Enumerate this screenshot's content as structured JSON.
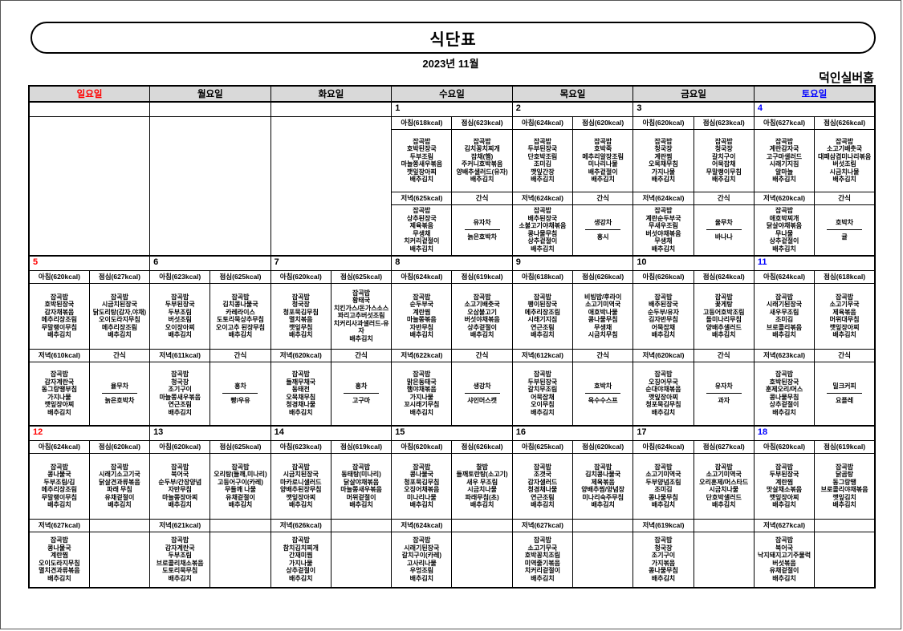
{
  "page": {
    "title": "식단표",
    "subtitle": "2023년 11월",
    "facility": "덕인실버홈"
  },
  "colors": {
    "sunday": "#ff0000",
    "saturday": "#0000ff",
    "weekday": "#000000",
    "header_bg": "#d9d9d9"
  },
  "day_headers": [
    "일요일",
    "월요일",
    "화요일",
    "수요일",
    "목요일",
    "금요일",
    "토요일"
  ],
  "weeks": [
    {
      "days": [
        {
          "date": ""
        },
        {
          "date": ""
        },
        {
          "date": ""
        },
        {
          "date": "1",
          "breakfast": {
            "header": "아침(618kcal)",
            "items": [
              "잡곡밥",
              "호박된장국",
              "두부조림",
              "마늘쫑새우볶음",
              "깻잎장아찌",
              "배추김치"
            ]
          },
          "lunch": {
            "header": "점심(623kcal)",
            "items": [
              "잡곡밥",
              "김치꽁치찌개",
              "잡채(햄)",
              "주커니호박볶음",
              "양배추샐러드(유자)",
              "배추김치"
            ]
          },
          "dinner": {
            "header": "저녁(625kcal)",
            "items": [
              "잡곡밥",
              "상추된장국",
              "제육볶음",
              "무생채",
              "치커리겉절이",
              "배추김치"
            ]
          },
          "snack": {
            "header": "간식",
            "items": [
              "유자차",
              "늙은호박차"
            ]
          }
        },
        {
          "date": "2",
          "breakfast": {
            "header": "아침(624kcal)",
            "items": [
              "잡곡밥",
              "두부된장국",
              "단호박조림",
              "조미김",
              "깻잎간장",
              "배추김치"
            ]
          },
          "lunch": {
            "header": "점심(620kcal)",
            "items": [
              "잡곡밥",
              "호박죽",
              "메추리알장조림",
              "미나리나물",
              "배추겉절이",
              "배추김치"
            ]
          },
          "dinner": {
            "header": "저녁(624kcal)",
            "items": [
              "잡곡밥",
              "배추된장국",
              "소불고기야채볶음",
              "콩나물무침",
              "상추겉절이",
              "배추김치"
            ]
          },
          "snack": {
            "header": "간식",
            "items": [
              "생강차",
              "홍시"
            ]
          }
        },
        {
          "date": "3",
          "breakfast": {
            "header": "아침(620kcal)",
            "items": [
              "잡곡밥",
              "청국장",
              "계란찜",
              "오목채무침",
              "가지나물",
              "배추김치"
            ]
          },
          "lunch": {
            "header": "점심(623kcal)",
            "items": [
              "잡곡밥",
              "청국장",
              "갈치구이",
              "어묵잡채",
              "무말랭이무침",
              "배추김치"
            ]
          },
          "dinner": {
            "header": "저녁(624kcal)",
            "items": [
              "잡곡밥",
              "계란순두부국",
              "무새우조림",
              "버섯야채볶음",
              "무생채",
              "배추김치"
            ]
          },
          "snack": {
            "header": "간식",
            "items": [
              "율무차",
              "바나나"
            ]
          }
        },
        {
          "date": "4",
          "breakfast": {
            "header": "아침(627kcal)",
            "items": [
              "잡곡밥",
              "계란감자국",
              "고구마샐러드",
              "시래기지짐",
              "알마늘",
              "배추김치"
            ]
          },
          "lunch": {
            "header": "점심(626kcal)",
            "items": [
              "잡곡밥",
              "소고기배춧국",
              "대패삼겹미나리볶음",
              "버섯조림",
              "시금치나물",
              "배추김치"
            ]
          },
          "dinner": {
            "header": "저녁(620kcal)",
            "items": [
              "잡곡밥",
              "애호박찌개",
              "닭살야채볶음",
              "무나물",
              "상추겉절이",
              "배추김치"
            ]
          },
          "snack": {
            "header": "간식",
            "items": [
              "호박차",
              "귤"
            ]
          }
        }
      ]
    },
    {
      "days": [
        {
          "date": "5",
          "breakfast": {
            "header": "아침(620kcal)",
            "items": [
              "잡곡밥",
              "호박된장국",
              "감자채볶음",
              "메추리장조림",
              "무말랭이무침",
              "배추김치"
            ]
          },
          "lunch": {
            "header": "점심(627kcal)",
            "items": [
              "잡곡밥",
              "시금치된장국",
              "닭도리탕(감자,야채)",
              "오이도라지무침",
              "메추리장조림",
              "배추김치"
            ]
          },
          "dinner": {
            "header": "저녁(610kcal)",
            "items": [
              "잡곡밥",
              "감자계란국",
              "동그랑땡부침",
              "가지나물",
              "깻잎장아찌",
              "배추김치"
            ]
          },
          "snack": {
            "header": "간식",
            "items": [
              "율무차",
              "늙은호박차"
            ]
          }
        },
        {
          "date": "6",
          "breakfast": {
            "header": "아침(623kcal)",
            "items": [
              "잡곡밥",
              "두부된장국",
              "두부조림",
              "버섯조림",
              "오이장아찌",
              "배추김치"
            ]
          },
          "lunch": {
            "header": "점심(625kcal)",
            "items": [
              "잡곡밥",
              "김치콩나물국",
              "카레라이스",
              "도토리묵상추무침",
              "오이고추 된장무침",
              "배추김치"
            ]
          },
          "dinner": {
            "header": "저녁(611kcal)",
            "items": [
              "잡곡밥",
              "청국장",
              "조기구이",
              "마늘쫑새우볶음",
              "연근조림",
              "배추김치"
            ]
          },
          "snack": {
            "header": "간식",
            "items": [
              "홍차",
              "빵/우유"
            ]
          }
        },
        {
          "date": "7",
          "breakfast": {
            "header": "아침(620kcal)",
            "items": [
              "잡곡밥",
              "청국장",
              "청포묵김무침",
              "멸치볶음",
              "깻잎무침",
              "배추김치"
            ]
          },
          "lunch": {
            "header": "점심(625kcal)",
            "items": [
              "잡곡밥",
              "황태국",
              "치킨가스/돈가스소스",
              "꽈리고추버섯조림",
              "치커리사과샐러드-유자",
              "배추김치"
            ]
          },
          "dinner": {
            "header": "저녁(620kcal)",
            "items": [
              "잡곡밥",
              "들깨무채국",
              "동태전",
              "오목채무침",
              "청경채나물",
              "배추김치"
            ]
          },
          "snack": {
            "header": "간식",
            "items": [
              "홍차",
              "고구마"
            ]
          }
        },
        {
          "date": "8",
          "breakfast": {
            "header": "아침(624kcal)",
            "items": [
              "잡곡밥",
              "순두부국",
              "계란찜",
              "마늘쫑볶음",
              "자반무침",
              "배추김치"
            ]
          },
          "lunch": {
            "header": "점심(619kcal)",
            "items": [
              "잡곡밥",
              "소고기배춧국",
              "오삼불고기",
              "버섯야채볶음",
              "상추겉절이",
              "배추김치"
            ]
          },
          "dinner": {
            "header": "저녁(622kcal)",
            "items": [
              "잡곡밥",
              "맑은동태국",
              "햄야채볶음",
              "가지나물",
              "꼬시래기무침",
              "배추김치"
            ]
          },
          "snack": {
            "header": "간식",
            "items": [
              "생강차",
              "샤인머스캣"
            ]
          }
        },
        {
          "date": "9",
          "breakfast": {
            "header": "아침(618kcal)",
            "items": [
              "잡곡밥",
              "팽이된장국",
              "메추리장조림",
              "시래기지짐",
              "연근조림",
              "배추김치"
            ]
          },
          "lunch": {
            "header": "점심(626kcal)",
            "items": [
              "비빔밥/후라이",
              "소고기미역국",
              "애호박나물",
              "콩나물무침",
              "무생채",
              "시금치무침"
            ]
          },
          "dinner": {
            "header": "저녁(612kcal)",
            "items": [
              "잡곡밥",
              "두부된장국",
              "갈치무조림",
              "어묵잡채",
              "오이무침",
              "배추김치"
            ]
          },
          "snack": {
            "header": "간식",
            "items": [
              "호박차",
              "옥수수스프"
            ]
          }
        },
        {
          "date": "10",
          "breakfast": {
            "header": "아침(626kcal)",
            "items": [
              "잡곡밥",
              "배추된장국",
              "순두부/유자",
              "김자반무침",
              "어묵잡채",
              "배추김치"
            ]
          },
          "lunch": {
            "header": "점심(624kcal)",
            "items": [
              "잡곡밥",
              "꽃게탕",
              "고등어호박조림",
              "돌미나리무침",
              "양배추샐러드",
              "배추김치"
            ]
          },
          "dinner": {
            "header": "저녁(620kcal)",
            "items": [
              "잡곡밥",
              "오징어무국",
              "순대야채볶음",
              "깻잎장아찌",
              "청포묵김무침",
              "배추김치"
            ]
          },
          "snack": {
            "header": "간식",
            "items": [
              "유자차",
              "과자"
            ]
          }
        },
        {
          "date": "11",
          "breakfast": {
            "header": "아침(624kcal)",
            "items": [
              "잡곡밥",
              "시래기된장국",
              "새우무조림",
              "조미김",
              "브로콜리볶음",
              "배추김치"
            ]
          },
          "lunch": {
            "header": "점심(618kcal)",
            "items": [
              "잡곡밥",
              "소고기무국",
              "제육볶음",
              "머위대무침",
              "깻잎장아찌",
              "배추김치"
            ]
          },
          "dinner": {
            "header": "저녁(623kcal)",
            "items": [
              "잡곡밥",
              "호박된장국",
              "훈제오리/머스",
              "콩나물무침",
              "상추겉절이",
              "배추김치"
            ]
          },
          "snack": {
            "header": "간식",
            "items": [
              "밀크커피",
              "요플레"
            ]
          }
        }
      ]
    },
    {
      "days": [
        {
          "date": "12",
          "breakfast": {
            "header": "아침(624kcal)",
            "items": [
              "잡곡밥",
              "콩나물국",
              "두부조림/김",
              "메추리장조림",
              "무말랭이무침",
              "배추김치"
            ]
          },
          "lunch": {
            "header": "점심(620kcal)",
            "items": [
              "잡곡밥",
              "시래기소고기국",
              "닭살견과류볶음",
              "파래 무침",
              "유채겉절이",
              "배추김치"
            ]
          },
          "dinner": {
            "header": "저녁(627kcal)",
            "items": [
              "잡곡밥",
              "콩나물국",
              "계란찜",
              "오이도라지무침",
              "멸치견과류볶음",
              "배추김치"
            ]
          },
          "snack": {
            "header": "",
            "items": []
          }
        },
        {
          "date": "13",
          "breakfast": {
            "header": "아침(620kcal)",
            "items": [
              "잡곡밥",
              "북어국",
              "순두부/간장양념",
              "자반무침",
              "마늘쫑장아찌",
              "배추김치"
            ]
          },
          "lunch": {
            "header": "점심(625kcal)",
            "items": [
              "잡곡밥",
              "오리탕(들깨,미나리)",
              "고등어구이(카레)",
              "무들깨 나물",
              "유채겉절이",
              "배추김치"
            ]
          },
          "dinner": {
            "header": "저녁(621kcal)",
            "items": [
              "잡곡밥",
              "감자계란국",
              "두부조림",
              "브로콜리채소볶음",
              "도토리묵무침",
              "배추김치"
            ]
          },
          "snack": {
            "header": "",
            "items": []
          }
        },
        {
          "date": "14",
          "breakfast": {
            "header": "아침(623kcal)",
            "items": [
              "잡곡밥",
              "시금치된장국",
              "마카로니샐러드",
              "양배추된장무침",
              "깻잎장아찌",
              "배추김치"
            ]
          },
          "lunch": {
            "header": "점심(619kcal)",
            "items": [
              "잡곡밥",
              "동태탕(미나리)",
              "닭살야채볶음",
              "마늘쫑새우볶음",
              "머위겉절이",
              "배추김치"
            ]
          },
          "dinner": {
            "header": "저녁(626kcal)",
            "items": [
              "잡곡밥",
              "참치김치찌개",
              "간재미찜",
              "가지나물",
              "상추겉절이",
              "배추김치"
            ]
          },
          "snack": {
            "header": "",
            "items": []
          }
        },
        {
          "date": "15",
          "breakfast": {
            "header": "아침(620kcal)",
            "items": [
              "잡곡밥",
              "콩나물국",
              "청포묵김무침",
              "오징어채볶음",
              "미나리나물",
              "배추김치"
            ]
          },
          "lunch": {
            "header": "점심(626kcal)",
            "items": [
              "찰밥",
              "들깨토란탕(소고기)",
              "새우 무조림",
              "시금치나물",
              "파래무침(초)",
              "배추김치"
            ]
          },
          "dinner": {
            "header": "저녁(624kcal)",
            "items": [
              "잡곡밥",
              "시래기된장국",
              "갈치구이(카레)",
              "고사리나물",
              "우엉조림",
              "배추김치"
            ]
          },
          "snack": {
            "header": "",
            "items": []
          }
        },
        {
          "date": "16",
          "breakfast": {
            "header": "아침(625kcal)",
            "items": [
              "잡곡밥",
              "조갯국",
              "감자샐러드",
              "청경채나물",
              "연근조림",
              "배추김치"
            ]
          },
          "lunch": {
            "header": "점심(620kcal)",
            "items": [
              "잡곡밥",
              "김치콩나물국",
              "제육볶음",
              "양배추찜/양념장",
              "미나리숙주무침",
              "배추김치"
            ]
          },
          "dinner": {
            "header": "저녁(627kcal)",
            "items": [
              "잡곡밥",
              "소고기무국",
              "호박꽁치조림",
              "미역줄기볶음",
              "치커리겉절이",
              "배추김치"
            ]
          },
          "snack": {
            "header": "",
            "items": []
          }
        },
        {
          "date": "17",
          "breakfast": {
            "header": "아침(624kcal)",
            "items": [
              "잡곡밥",
              "소고기미역국",
              "두부양념조림",
              "조미김",
              "콩나물무침",
              "배추김치"
            ]
          },
          "lunch": {
            "header": "점심(627kcal)",
            "items": [
              "잡곡밥",
              "소고기미역국",
              "오리훈제/머스타드",
              "시금치나물",
              "단호박샐러드",
              "배추김치"
            ]
          },
          "dinner": {
            "header": "저녁(619kcal)",
            "items": [
              "잡곡밥",
              "청국장",
              "조기구이",
              "가지볶음",
              "콩나물무침",
              "배추김치"
            ]
          },
          "snack": {
            "header": "",
            "items": []
          }
        },
        {
          "date": "18",
          "breakfast": {
            "header": "아침(620kcal)",
            "items": [
              "잡곡밥",
              "두부된장국",
              "계란찜",
              "맛살채소볶음",
              "깻잎장아찌",
              "배추김치"
            ]
          },
          "lunch": {
            "header": "점심(619kcal)",
            "items": [
              "잡곡밥",
              "닭곰탕",
              "동그랑땡",
              "브로콜리야채볶음",
              "깻잎김치",
              "배추김치"
            ]
          },
          "dinner": {
            "header": "저녁(627kcal)",
            "items": [
              "잡곡밥",
              "북어국",
              "낙지돼지고기주물럭",
              "버섯볶음",
              "유채겉절이",
              "배추김치"
            ]
          },
          "snack": {
            "header": "",
            "items": []
          }
        }
      ]
    }
  ]
}
